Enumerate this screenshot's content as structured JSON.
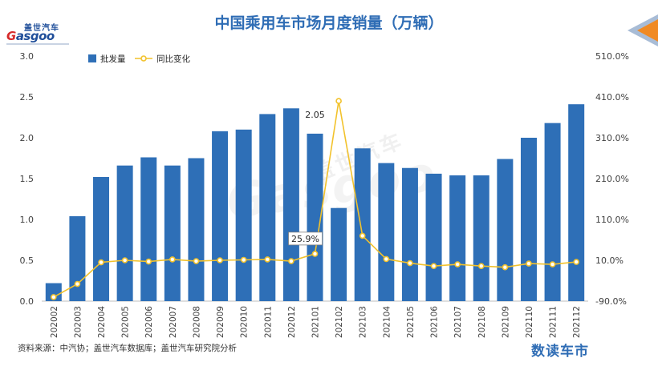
{
  "title": "中国乘用车市场月度销量（万辆）",
  "logo": {
    "cn": "盖世汽车",
    "en_prefix": "G",
    "en_rest": "asgoo"
  },
  "watermark": {
    "cn": "盖世汽车",
    "en": "Gasgoo"
  },
  "source": "资料来源：中汽协；盖世汽车数据库；盖世汽车研究院分析",
  "brand": "数读车市",
  "chart_data": {
    "type": "bar",
    "categories": [
      "202002",
      "202003",
      "202004",
      "202005",
      "202006",
      "202007",
      "202008",
      "202009",
      "202010",
      "202011",
      "202012",
      "202101",
      "202102",
      "202103",
      "202104",
      "202105",
      "202106",
      "202107",
      "202108",
      "202109",
      "202110",
      "202111",
      "202112"
    ],
    "series": [
      {
        "name": "批发量",
        "type": "bar",
        "axis": "left",
        "color": "#2e6fb7",
        "values": [
          0.22,
          1.04,
          1.52,
          1.66,
          1.76,
          1.66,
          1.75,
          2.08,
          2.1,
          2.29,
          2.36,
          2.05,
          1.14,
          1.87,
          1.69,
          1.63,
          1.56,
          1.54,
          1.54,
          1.74,
          2.0,
          2.18,
          2.41
        ]
      },
      {
        "name": "同比变化",
        "type": "line",
        "axis": "right",
        "color": "#f2c22c",
        "values": [
          -80.0,
          -48.0,
          5.0,
          10.0,
          7.0,
          12.0,
          8.0,
          10.0,
          11.0,
          12.0,
          8.0,
          25.9,
          400.0,
          70.0,
          13.0,
          3.0,
          -4.0,
          0.0,
          -4.0,
          -7.0,
          2.0,
          0.0,
          6.0
        ]
      }
    ],
    "left_axis": {
      "min": 0,
      "max": 3,
      "ticks": [
        "0.0",
        "0.5",
        "1.0",
        "1.5",
        "2.0",
        "2.5",
        "3.0"
      ]
    },
    "right_axis": {
      "min": -90,
      "max": 510,
      "ticks": [
        "-90.0%",
        "10.0%",
        "110.0%",
        "210.0%",
        "310.0%",
        "410.0%",
        "510.0%"
      ]
    },
    "annotations": [
      {
        "index": 11,
        "series": 0,
        "text": "2.05"
      },
      {
        "index": 11,
        "series": 1,
        "text": "25.9%"
      }
    ],
    "legend": "top-left",
    "grid": false
  }
}
